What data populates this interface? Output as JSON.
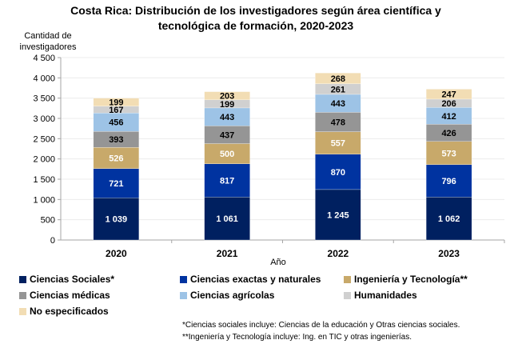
{
  "chart_data": {
    "type": "bar",
    "stacked": true,
    "title": "Costa Rica: Distribución de los investigadores según área científica y tecnológica de formación, 2020-2023",
    "title_lines": [
      "Costa Rica: Distribución de los investigadores según área científica y",
      "tecnológica de formación, 2020-2023"
    ],
    "xlabel": "Año",
    "ylabel": "Cantidad de investigadores",
    "ylabel_lines": [
      "Cantidad de",
      "investigadores"
    ],
    "ylim": [
      0,
      4500
    ],
    "yticks": [
      0,
      500,
      1000,
      1500,
      2000,
      2500,
      3000,
      3500,
      4000,
      4500
    ],
    "ytick_labels": [
      "0",
      "500",
      "1 000",
      "1 500",
      "2 000",
      "2 500",
      "3 000",
      "3 500",
      "4 000",
      "4 500"
    ],
    "grid": true,
    "legend_position": "bottom",
    "categories": [
      "2020",
      "2021",
      "2022",
      "2023"
    ],
    "series": [
      {
        "name": "Ciencias Sociales*",
        "color": "#002060",
        "label_color": "#ffffff",
        "values": [
          1039,
          1061,
          1245,
          1062
        ],
        "labels": [
          "1 039",
          "1 061",
          "1 245",
          "1 062"
        ]
      },
      {
        "name": "Ciencias exactas y naturales",
        "color": "#0033a0",
        "label_color": "#ffffff",
        "values": [
          721,
          817,
          870,
          796
        ],
        "labels": [
          "721",
          "817",
          "870",
          "796"
        ]
      },
      {
        "name": "Ingeniería y Tecnología**",
        "color": "#c8a96a",
        "label_color": "#ffffff",
        "values": [
          526,
          500,
          557,
          573
        ],
        "labels": [
          "526",
          "500",
          "557",
          "573"
        ]
      },
      {
        "name": "Ciencias médicas",
        "color": "#959595",
        "label_color": "#000000",
        "values": [
          393,
          437,
          478,
          426
        ],
        "labels": [
          "393",
          "437",
          "478",
          "426"
        ]
      },
      {
        "name": "Ciencias agrícolas",
        "color": "#9dc3e6",
        "label_color": "#000000",
        "values": [
          456,
          443,
          443,
          412
        ],
        "labels": [
          "456",
          "443",
          "443",
          "412"
        ]
      },
      {
        "name": "Humanidades",
        "color": "#d0d0d0",
        "label_color": "#000000",
        "values": [
          167,
          199,
          261,
          206
        ],
        "labels": [
          "167",
          "199",
          "261",
          "206"
        ]
      },
      {
        "name": "No especificados",
        "color": "#f2ddb4",
        "label_color": "#000000",
        "values": [
          199,
          203,
          268,
          247
        ],
        "labels": [
          "199",
          "203",
          "268",
          "247"
        ]
      }
    ],
    "notes": [
      "*Ciencias sociales incluye: Ciencias de la educación y Otras ciencias sociales.",
      "**Ingeniería y Tecnología incluye: Ing. en TIC y otras ingenierías."
    ]
  }
}
